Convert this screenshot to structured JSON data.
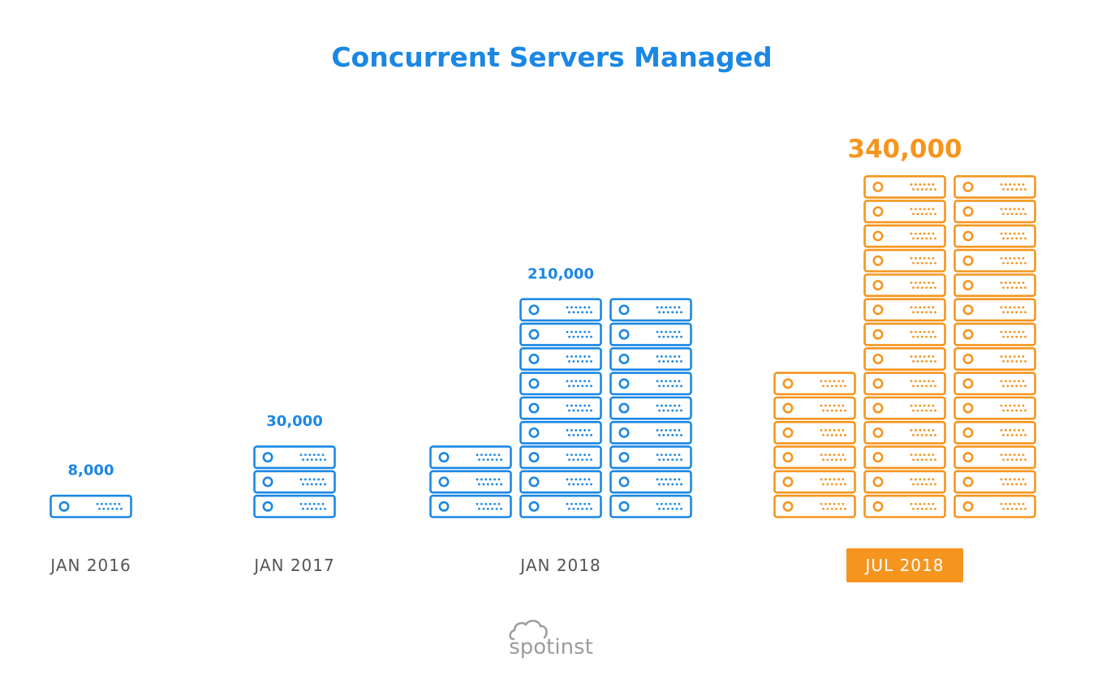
{
  "chart_data": {
    "type": "bar",
    "title": "Concurrent Servers Managed",
    "categories": [
      "JAN 2016",
      "JAN 2017",
      "JAN 2018",
      "JUL 2018"
    ],
    "values": [
      8000,
      30000,
      210000,
      340000
    ],
    "value_labels": [
      "8,000",
      "30,000",
      "210,000",
      "340,000"
    ],
    "highlight_index": 3,
    "grid": false,
    "legend": "none"
  },
  "colors": {
    "primary": "#1b87e5",
    "highlight": "#f5951e",
    "category_text": "#555555",
    "highlight_text": "#ffffff",
    "logo": "#9c9c9c"
  },
  "logo": {
    "text": "spotinst",
    "icon": "cloud-icon"
  }
}
